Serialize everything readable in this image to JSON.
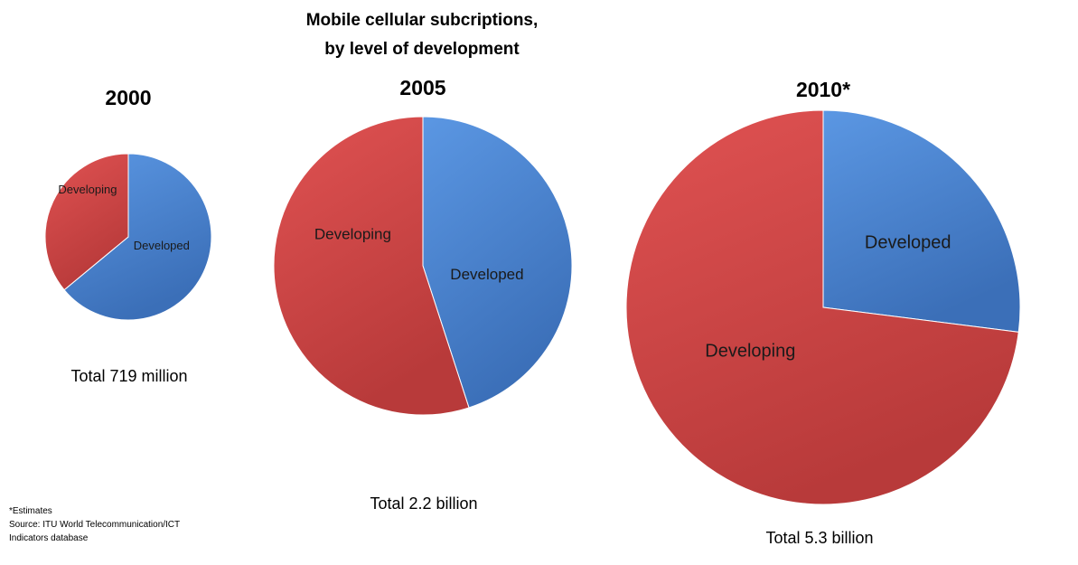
{
  "title_lines": [
    "Mobile cellular subcriptions,",
    "by level of development"
  ],
  "footnote": [
    "*Estimates",
    "Source: ITU World Telecommunication/ICT",
    "Indicators database"
  ],
  "colors": {
    "developed": "#4a86d6",
    "developing": "#d64545"
  },
  "chart_data": [
    {
      "type": "pie",
      "title": "2000",
      "total_label": "Total  719 million",
      "slices": [
        {
          "label": "Developed",
          "value": 0.64
        },
        {
          "label": "Developing",
          "value": 0.36
        }
      ]
    },
    {
      "type": "pie",
      "title": "2005",
      "total_label": "Total  2.2 billion",
      "slices": [
        {
          "label": "Developed",
          "value": 0.45
        },
        {
          "label": "Developing",
          "value": 0.55
        }
      ]
    },
    {
      "type": "pie",
      "title": "2010*",
      "total_label": "Total  5.3 billion",
      "slices": [
        {
          "label": "Developed",
          "value": 0.27
        },
        {
          "label": "Developing",
          "value": 0.73
        }
      ]
    }
  ]
}
